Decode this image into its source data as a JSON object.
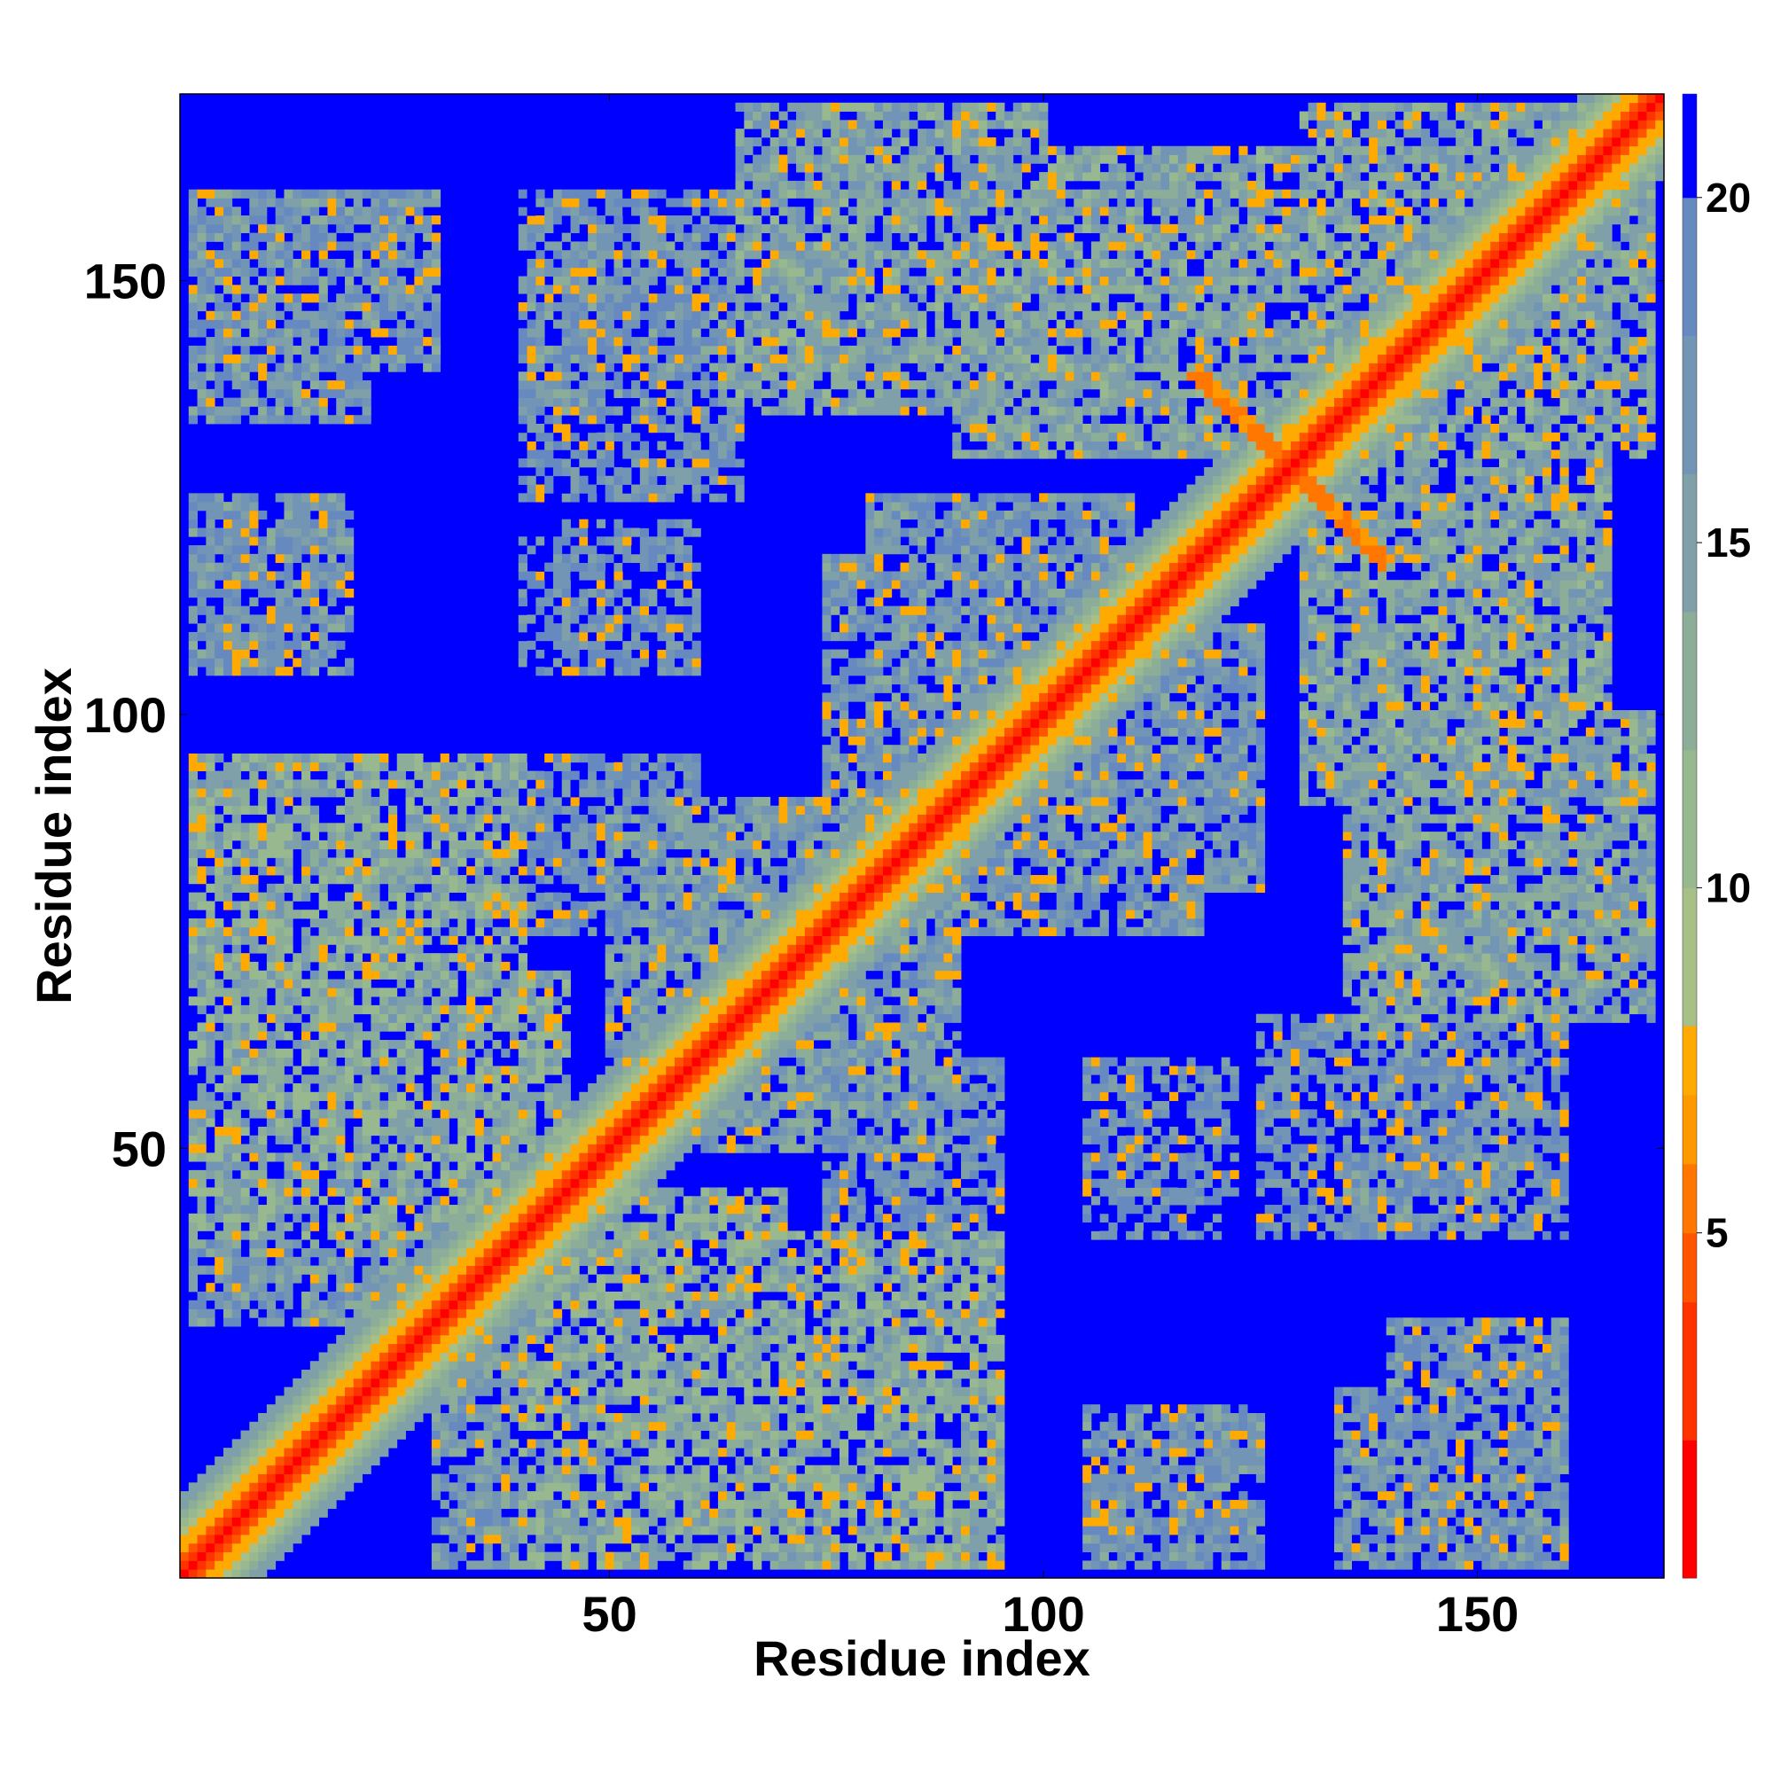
{
  "chart_data": {
    "type": "heatmap",
    "title": "",
    "xlabel": "Residue index",
    "ylabel": "Residue index",
    "n_residues": 171,
    "xlim": [
      1,
      171
    ],
    "ylim": [
      1,
      171
    ],
    "x_ticks": [
      50,
      100,
      150
    ],
    "y_ticks": [
      50,
      100,
      150
    ],
    "x_tick_labels": [
      "50",
      "100",
      "150"
    ],
    "y_tick_labels": [
      "50",
      "100",
      "150"
    ],
    "value_range": [
      0,
      21.5
    ],
    "colorbar": {
      "ticks": [
        5,
        10,
        15,
        20
      ],
      "tick_labels": [
        "5",
        "10",
        "15",
        "20"
      ],
      "levels": [
        {
          "max": 2,
          "color": "#ff0000"
        },
        {
          "max": 4,
          "color": "#ff3300"
        },
        {
          "max": 5,
          "color": "#ff5500"
        },
        {
          "max": 6,
          "color": "#ff7700"
        },
        {
          "max": 7,
          "color": "#ff9900"
        },
        {
          "max": 8,
          "color": "#ffaa00"
        },
        {
          "max": 10,
          "color": "#a8bf88"
        },
        {
          "max": 12,
          "color": "#98b890"
        },
        {
          "max": 14,
          "color": "#8cae98"
        },
        {
          "max": 16,
          "color": "#7fa0a8"
        },
        {
          "max": 18,
          "color": "#7295b5"
        },
        {
          "max": 20,
          "color": "#668abf"
        },
        {
          "max": 21.5,
          "color": "#0000ff"
        }
      ]
    },
    "structure": {
      "description_values_are_distances_in_angstrom": false,
      "diagonal_width": 5,
      "helix_segments": [
        [
          2,
          40
        ],
        [
          41,
          100
        ],
        [
          101,
          125
        ],
        [
          126,
          171
        ]
      ],
      "contact_blocks": [
        {
          "x": [
            2,
            30
          ],
          "y": [
            140,
            160
          ],
          "mean": 15
        },
        {
          "x": [
            2,
            20
          ],
          "y": [
            108,
            125
          ],
          "mean": 15
        },
        {
          "x": [
            40,
            65
          ],
          "y": [
            125,
            160
          ],
          "mean": 16
        },
        {
          "x": [
            40,
            60
          ],
          "y": [
            105,
            120
          ],
          "mean": 16
        },
        {
          "x": [
            65,
            100
          ],
          "y": [
            135,
            170
          ],
          "mean": 13
        },
        {
          "x": [
            95,
            130
          ],
          "y": [
            130,
            165
          ],
          "mean": 13
        },
        {
          "x": [
            75,
            95
          ],
          "y": [
            80,
            118
          ],
          "mean": 15
        },
        {
          "x": [
            100,
            125
          ],
          "y": [
            80,
            110
          ],
          "mean": 15
        },
        {
          "x": [
            130,
            165
          ],
          "y": [
            90,
            130
          ],
          "mean": 14
        },
        {
          "x": [
            140,
            170
          ],
          "y": [
            130,
            170
          ],
          "mean": 13
        },
        {
          "x": [
            5,
            40
          ],
          "y": [
            60,
            95
          ],
          "mean": 13
        },
        {
          "x": [
            2,
            45
          ],
          "y": [
            40,
            70
          ],
          "mean": 12
        },
        {
          "x": [
            45,
            95
          ],
          "y": [
            2,
            40
          ],
          "mean": 12
        },
        {
          "x": [
            30,
            60
          ],
          "y": [
            2,
            30
          ],
          "mean": 14
        },
        {
          "x": [
            60,
            90
          ],
          "y": [
            50,
            75
          ],
          "mean": 14
        },
        {
          "x": [
            40,
            60
          ],
          "y": [
            75,
            95
          ],
          "mean": 16
        },
        {
          "x": [
            135,
            165
          ],
          "y": [
            65,
            85
          ],
          "mean": 14
        },
        {
          "x": [
            135,
            155
          ],
          "y": [
            40,
            65
          ],
          "mean": 15
        },
        {
          "x": [
            108,
            122
          ],
          "y": [
            45,
            60
          ],
          "mean": 16
        },
        {
          "x": [
            105,
            122
          ],
          "y": [
            2,
            20
          ],
          "mean": 15
        },
        {
          "x": [
            134,
            155
          ],
          "y": [
            2,
            22
          ],
          "mean": 15
        }
      ]
    }
  }
}
